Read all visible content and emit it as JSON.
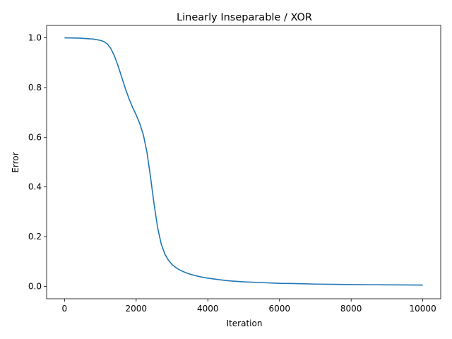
{
  "chart_data": {
    "type": "line",
    "title": "Linearly Inseparable / XOR",
    "xlabel": "Iteration",
    "ylabel": "Error",
    "xlim": [
      -500,
      10500
    ],
    "ylim": [
      -0.05,
      1.05
    ],
    "xticks": [
      0,
      2000,
      4000,
      6000,
      8000,
      10000
    ],
    "xtick_labels": [
      "0",
      "2000",
      "4000",
      "6000",
      "8000",
      "10000"
    ],
    "yticks": [
      0.0,
      0.2,
      0.4,
      0.6,
      0.8,
      1.0
    ],
    "ytick_labels": [
      "0.0",
      "0.2",
      "0.4",
      "0.6",
      "0.8",
      "1.0"
    ],
    "grid": false,
    "line_color": "#1f77b4",
    "series": [
      {
        "x": [
          0,
          400,
          800,
          1000,
          1100,
          1200,
          1300,
          1400,
          1500,
          1600,
          1700,
          1800,
          1900,
          2000,
          2100,
          2200,
          2300,
          2400,
          2500,
          2600,
          2700,
          2800,
          2900,
          3000,
          3100,
          3200,
          3300,
          3400,
          3500,
          3600,
          3800,
          4000,
          4300,
          4600,
          5000,
          5500,
          6000,
          6500,
          7000,
          7500,
          8000,
          8500,
          9000,
          9500,
          10000
        ],
        "y": [
          1.0,
          0.999,
          0.995,
          0.99,
          0.985,
          0.975,
          0.955,
          0.925,
          0.885,
          0.84,
          0.795,
          0.755,
          0.72,
          0.69,
          0.655,
          0.61,
          0.54,
          0.44,
          0.33,
          0.235,
          0.17,
          0.13,
          0.105,
          0.088,
          0.076,
          0.067,
          0.06,
          0.054,
          0.049,
          0.045,
          0.038,
          0.033,
          0.027,
          0.022,
          0.018,
          0.015,
          0.012,
          0.011,
          0.009,
          0.008,
          0.007,
          0.0065,
          0.006,
          0.0055,
          0.005
        ]
      }
    ]
  }
}
